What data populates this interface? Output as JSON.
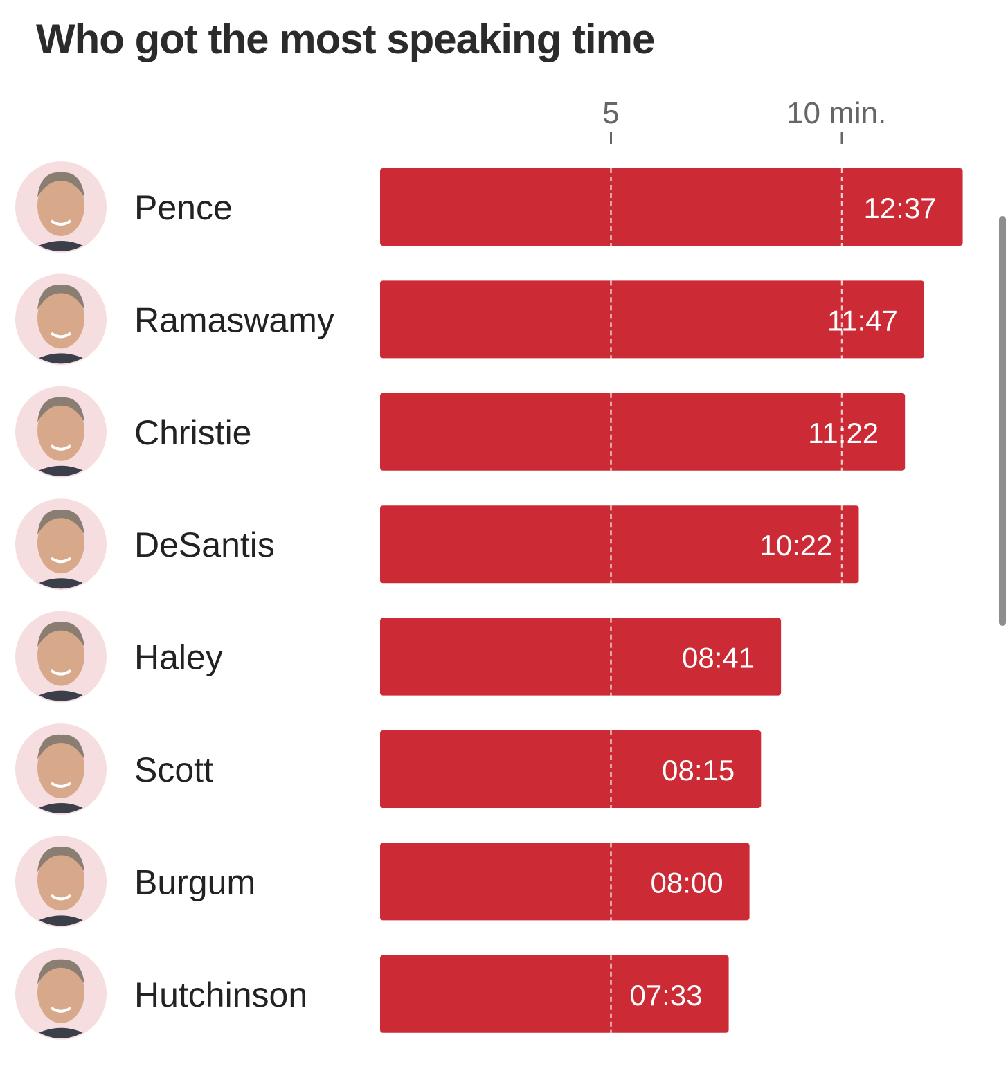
{
  "title": "Who got the most speaking time",
  "colors": {
    "bar": "#cc2b35",
    "text": "#222222",
    "axis": "#666666",
    "avatar_bg": "#f6dde0"
  },
  "chart_data": {
    "type": "bar",
    "orientation": "horizontal",
    "title": "Who got the most speaking time",
    "categories": [
      "Pence",
      "Ramaswamy",
      "Christie",
      "DeSantis",
      "Haley",
      "Scott",
      "Burgum",
      "Hutchinson"
    ],
    "values": [
      12.617,
      11.783,
      11.367,
      10.367,
      8.683,
      8.25,
      8.0,
      7.55
    ],
    "value_labels": [
      "12:37",
      "11:47",
      "11:22",
      "10:22",
      "08:41",
      "08:15",
      "08:00",
      "07:33"
    ],
    "x_ticks": [
      {
        "value": 5,
        "label": "5"
      },
      {
        "value": 10,
        "label": "10 min."
      }
    ],
    "xlim": [
      0,
      12.617
    ],
    "grid": "dashed vertical lines at 5 and 10 min",
    "legend": "none"
  }
}
